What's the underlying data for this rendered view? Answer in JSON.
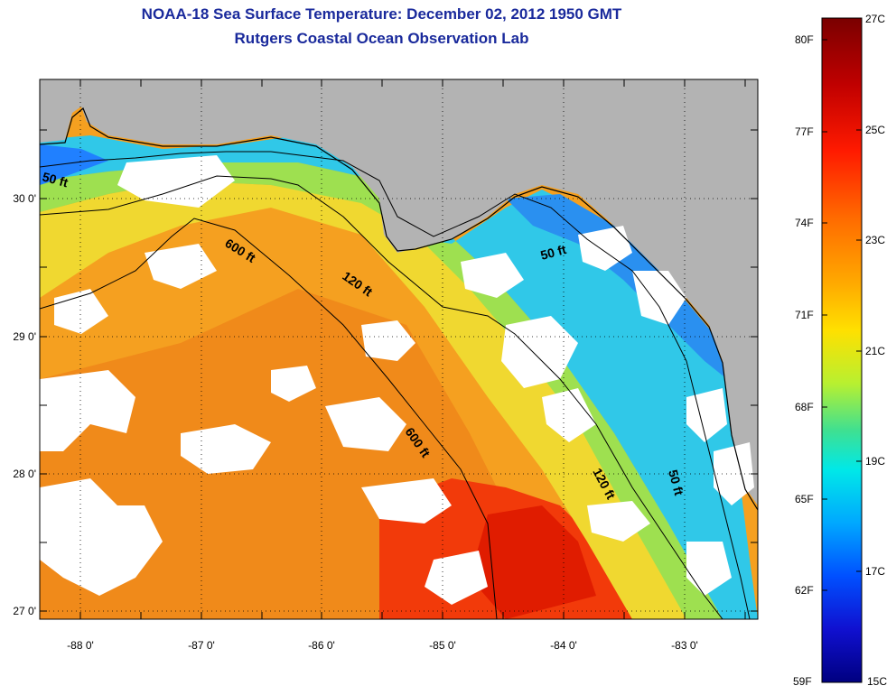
{
  "title": {
    "line1": "NOAA-18 Sea Surface Temperature:  December 02, 2012 1950 GMT",
    "line2": "Rutgers Coastal Ocean Observation Lab"
  },
  "axes": {
    "lat_labels": [
      "30 0'",
      "29 0'",
      "28 0'",
      "27 0'"
    ],
    "lon_labels": [
      "-88 0'",
      "-87 0'",
      "-86 0'",
      "-85 0'",
      "-84 0'",
      "-83 0'"
    ]
  },
  "contours": {
    "labels": [
      "50 ft",
      "600 ft",
      "120 ft",
      "50 ft",
      "600 ft",
      "120 ft",
      "50 ft"
    ]
  },
  "colorbar": {
    "fahrenheit": [
      "80F",
      "77F",
      "74F",
      "71F",
      "68F",
      "65F",
      "62F",
      "59F"
    ],
    "celsius": [
      "27C",
      "25C",
      "23C",
      "21C",
      "19C",
      "17C",
      "15C"
    ],
    "colors": [
      "#7a0000",
      "#c00000",
      "#ff2000",
      "#ff6a00",
      "#ffaa00",
      "#ffe000",
      "#c8f020",
      "#50e080",
      "#00e8e8",
      "#00a8ff",
      "#0050ff",
      "#1010d0",
      "#000080"
    ]
  },
  "colors": {
    "land": "#b3b3b3",
    "cloud": "#ffffff",
    "title": "#1a2a9c"
  }
}
